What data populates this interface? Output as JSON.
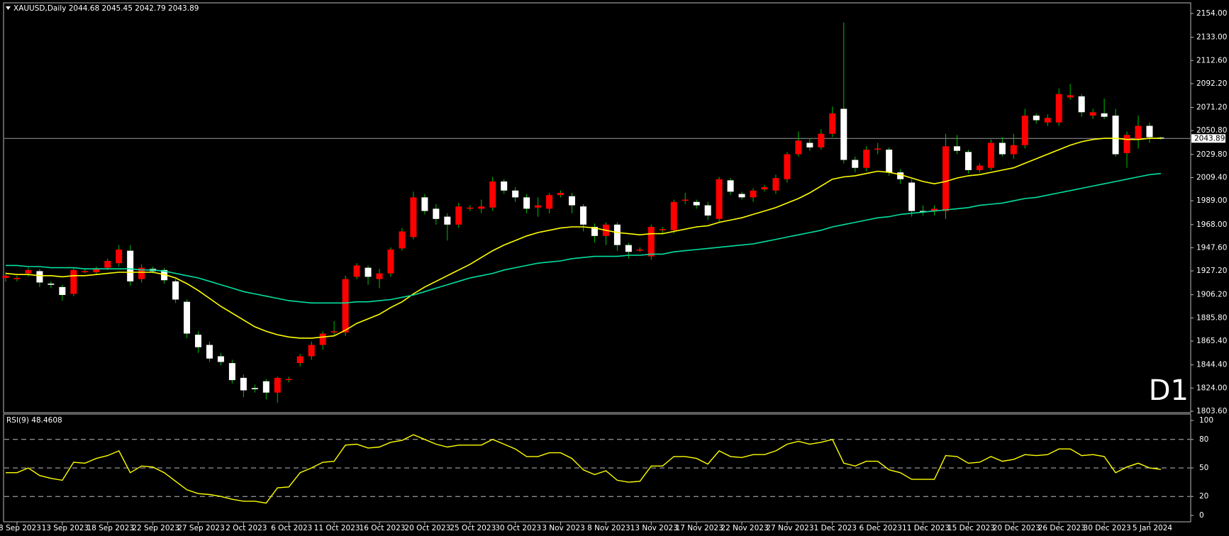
{
  "chart_data": [
    {
      "type": "candlestick",
      "title": "XAUUSD,Daily  2044.68 2045.45 2042.79 2043.89",
      "badge": "D1",
      "badge_color": "#e00000",
      "up_color": "#ff0000",
      "down_color": "#ffffff",
      "wick_color": "#00c000",
      "last_price": 2043.89,
      "categories": [
        null,
        "8 Sep 2023",
        null,
        null,
        null,
        "13 Sep 2023",
        null,
        null,
        null,
        "18 Sep 2023",
        null,
        null,
        null,
        "22 Sep 2023",
        null,
        null,
        null,
        "27 Sep 2023",
        null,
        null,
        null,
        "2 Oct 2023",
        null,
        null,
        null,
        "6 Oct 2023",
        null,
        null,
        null,
        "11 Oct 2023",
        null,
        null,
        null,
        "16 Oct 2023",
        null,
        null,
        null,
        "20 Oct 2023",
        null,
        null,
        null,
        "25 Oct 2023",
        null,
        null,
        null,
        "30 Oct 2023",
        null,
        null,
        null,
        "3 Nov 2023",
        null,
        null,
        null,
        "8 Nov 2023",
        null,
        null,
        null,
        "13 Nov 2023",
        null,
        null,
        null,
        "17 Nov 2023",
        null,
        null,
        null,
        "22 Nov 2023",
        null,
        null,
        null,
        "27 Nov 2023",
        null,
        null,
        null,
        "1 Dec 2023",
        null,
        null,
        null,
        "6 Dec 2023",
        null,
        null,
        null,
        "11 Dec 2023",
        null,
        null,
        null,
        "15 Dec 2023",
        null,
        null,
        null,
        "20 Dec 2023",
        null,
        null,
        null,
        "26 Dec 2023",
        null,
        null,
        null,
        "30 Dec 2023",
        null,
        null,
        null,
        "5 Jan 2024",
        null
      ],
      "open": [
        1921,
        1920,
        1925,
        1927,
        1916,
        1913,
        1907,
        1926,
        1926,
        1930,
        1934,
        1945,
        1920,
        1929,
        1928,
        1918,
        1900,
        1871,
        1862,
        1852,
        1846,
        1833,
        1824,
        1830,
        1820,
        1831,
        1846,
        1852,
        1862,
        1873,
        1873,
        1922,
        1930,
        1920,
        1925,
        1947,
        1957,
        1992,
        1982,
        1975,
        1968,
        1982,
        1982,
        1983,
        2006,
        1998,
        1992,
        1983,
        1982,
        1994,
        1993,
        1984,
        1966,
        1958,
        1968,
        1950,
        1945,
        1940,
        1963,
        1963,
        1989,
        1988,
        1985,
        1973,
        2007,
        1995,
        1992,
        1999,
        1998,
        2008,
        2030,
        2040,
        2036,
        2048,
        2070,
        2025,
        2018,
        2034,
        2034,
        2014,
        2005,
        1980,
        1980,
        1980,
        2037,
        2032,
        2016,
        2018,
        2040,
        2030,
        2038,
        2064,
        2058,
        2058,
        2080,
        2081,
        2064,
        2066,
        2064,
        2031,
        2043,
        2055,
        2044.68
      ],
      "high": [
        1926,
        1923,
        1930,
        1929,
        1918,
        1915,
        1930,
        1929,
        1931,
        1938,
        1950,
        1950,
        1933,
        1931,
        1930,
        1920,
        1902,
        1874,
        1865,
        1855,
        1849,
        1836,
        1827,
        1832,
        1834,
        1834,
        1854,
        1865,
        1874,
        1883,
        1923,
        1934,
        1932,
        1929,
        1948,
        1965,
        1997,
        1995,
        1986,
        1978,
        1987,
        1985,
        1990,
        2010,
        2008,
        2001,
        1995,
        1992,
        1996,
        1998,
        1996,
        1986,
        1969,
        1970,
        1970,
        1952,
        1948,
        1968,
        1966,
        1990,
        1996,
        1990,
        1988,
        2010,
        2009,
        1997,
        2000,
        2003,
        2012,
        2032,
        2050,
        2044,
        2052,
        2072,
        2146,
        2028,
        2037,
        2040,
        2036,
        2017,
        2008,
        1985,
        1985,
        2048,
        2047,
        2034,
        2022,
        2043,
        2045,
        2048,
        2070,
        2066,
        2065,
        2088,
        2092,
        2083,
        2070,
        2079,
        2070,
        2050,
        2064,
        2058,
        2045.45
      ],
      "low": [
        1918,
        1918,
        1922,
        1913,
        1912,
        1901,
        1905,
        1925,
        1924,
        1928,
        1931,
        1914,
        1917,
        1925,
        1916,
        1899,
        1868,
        1855,
        1847,
        1844,
        1828,
        1816,
        1820,
        1814,
        1811,
        1829,
        1843,
        1849,
        1858,
        1870,
        1870,
        1920,
        1915,
        1912,
        1922,
        1945,
        1955,
        1977,
        1968,
        1954,
        1965,
        1980,
        1978,
        1980,
        1995,
        1988,
        1978,
        1975,
        1978,
        1992,
        1978,
        1962,
        1952,
        1950,
        1945,
        1938,
        1944,
        1937,
        1960,
        1960,
        1986,
        1982,
        1972,
        1970,
        1994,
        1990,
        1988,
        1997,
        1995,
        2005,
        2028,
        2033,
        2034,
        2045,
        2022,
        2014,
        2015,
        2030,
        2011,
        2004,
        1975,
        1976,
        1976,
        1973,
        2030,
        2013,
        2014,
        2016,
        2028,
        2026,
        2035,
        2057,
        2055,
        2055,
        2078,
        2063,
        2061,
        2061,
        2028,
        2018,
        2035,
        2040,
        2042.79
      ],
      "close": [
        1923,
        1921,
        1928,
        1917,
        1915,
        1906,
        1928,
        1927,
        1929,
        1936,
        1946,
        1918,
        1930,
        1927,
        1919,
        1902,
        1872,
        1860,
        1850,
        1847,
        1831,
        1822,
        1823,
        1820,
        1833,
        1832,
        1852,
        1862,
        1872,
        1874,
        1920,
        1932,
        1922,
        1925,
        1946,
        1962,
        1992,
        1980,
        1973,
        1968,
        1984,
        1983,
        1984,
        2006,
        1998,
        1992,
        1982,
        1985,
        1994,
        1996,
        1985,
        1968,
        1958,
        1968,
        1950,
        1944,
        1946,
        1966,
        1964,
        1988,
        1990,
        1985,
        1976,
        2008,
        1997,
        1992,
        1998,
        2001,
        2009,
        2030,
        2042,
        2036,
        2048,
        2066,
        2025,
        2018,
        2034,
        2035,
        2014,
        2008,
        1980,
        1979,
        1982,
        2037,
        2033,
        2016,
        2020,
        2040,
        2030,
        2038,
        2064,
        2060,
        2062,
        2083,
        2082,
        2067,
        2067,
        2063,
        2030,
        2047,
        2055,
        2045,
        2043.89
      ],
      "overlays": [
        {
          "color": "#ffff00",
          "values": [
            1925,
            1924,
            1924,
            1923,
            1923,
            1922,
            1923,
            1923,
            1924,
            1925,
            1926,
            1926,
            1926,
            1926,
            1924,
            1921,
            1916,
            1910,
            1903,
            1896,
            1890,
            1884,
            1878,
            1874,
            1871,
            1869,
            1868,
            1868,
            1869,
            1870,
            1875,
            1881,
            1885,
            1889,
            1895,
            1900,
            1907,
            1913,
            1918,
            1923,
            1928,
            1933,
            1939,
            1945,
            1950,
            1954,
            1958,
            1961,
            1963,
            1965,
            1966,
            1966,
            1965,
            1963,
            1961,
            1960,
            1959,
            1960,
            1960,
            1962,
            1964,
            1966,
            1967,
            1970,
            1972,
            1974,
            1977,
            1980,
            1983,
            1987,
            1991,
            1996,
            2002,
            2008,
            2010,
            2011,
            2013,
            2015,
            2014,
            2012,
            2009,
            2006,
            2004,
            2006,
            2009,
            2011,
            2012,
            2014,
            2016,
            2018,
            2022,
            2026,
            2030,
            2034,
            2038,
            2041,
            2043,
            2044,
            2044,
            2043,
            2043,
            2044,
            2044
          ]
        },
        {
          "color": "#00e0a0",
          "values": [
            1932,
            1932,
            1931,
            1931,
            1930,
            1930,
            1930,
            1929,
            1929,
            1929,
            1929,
            1929,
            1928,
            1928,
            1927,
            1925,
            1923,
            1921,
            1918,
            1915,
            1912,
            1909,
            1907,
            1905,
            1903,
            1901,
            1900,
            1899,
            1899,
            1899,
            1899,
            1900,
            1900,
            1901,
            1902,
            1904,
            1906,
            1909,
            1912,
            1915,
            1918,
            1921,
            1923,
            1925,
            1928,
            1930,
            1932,
            1934,
            1935,
            1936,
            1938,
            1939,
            1940,
            1940,
            1940,
            1941,
            1941,
            1942,
            1942,
            1944,
            1945,
            1946,
            1947,
            1948,
            1949,
            1950,
            1951,
            1953,
            1955,
            1957,
            1959,
            1961,
            1963,
            1966,
            1968,
            1970,
            1972,
            1974,
            1975,
            1977,
            1978,
            1979,
            1980,
            1981,
            1982,
            1983,
            1985,
            1986,
            1987,
            1989,
            1991,
            1992,
            1994,
            1996,
            1998,
            2000,
            2002,
            2004,
            2006,
            2008,
            2010,
            2012,
            2013
          ]
        }
      ],
      "ylim": [
        1803.6,
        2154
      ],
      "yticks": [
        {
          "value": 1803.6,
          "label": "1803.60"
        },
        {
          "value": 1824,
          "label": "1824.00"
        },
        {
          "value": 1844.4,
          "label": "1844.40"
        },
        {
          "value": 1865.4,
          "label": "1865.40"
        },
        {
          "value": 1885.8,
          "label": "1885.80"
        },
        {
          "value": 1906.2,
          "label": "1906.20"
        },
        {
          "value": 1927.2,
          "label": "1927.20"
        },
        {
          "value": 1947.6,
          "label": "1947.60"
        },
        {
          "value": 1968,
          "label": "1968.00"
        },
        {
          "value": 1989,
          "label": "1989.00"
        },
        {
          "value": 2009.4,
          "label": "2009.40"
        },
        {
          "value": 2029.8,
          "label": "2029.80"
        },
        {
          "value": 2050.8,
          "label": "2050.80"
        },
        {
          "value": 2071.2,
          "label": "2071.20"
        },
        {
          "value": 2092.2,
          "label": "2092.20"
        },
        {
          "value": 2112.6,
          "label": "2112.60"
        },
        {
          "value": 2133,
          "label": "2133.00"
        },
        {
          "value": 2154,
          "label": "2154.00"
        }
      ]
    },
    {
      "type": "line",
      "title": "RSI(9) 48.4608",
      "color": "#ffff00",
      "values": [
        45,
        45,
        50,
        42,
        39,
        37,
        56,
        55,
        60,
        63,
        68,
        45,
        52,
        51,
        45,
        36,
        27,
        23,
        22,
        20,
        17,
        15,
        15,
        13,
        29,
        30,
        45,
        50,
        56,
        57,
        74,
        75,
        71,
        72,
        77,
        79,
        85,
        80,
        75,
        72,
        74,
        74,
        74,
        80,
        75,
        70,
        62,
        62,
        66,
        66,
        60,
        48,
        43,
        47,
        37,
        35,
        36,
        52,
        52,
        62,
        62,
        60,
        54,
        68,
        62,
        61,
        64,
        64,
        68,
        75,
        78,
        75,
        77,
        80,
        55,
        52,
        57,
        57,
        48,
        45,
        38,
        38,
        38,
        63,
        62,
        55,
        56,
        62,
        57,
        59,
        64,
        63,
        64,
        70,
        70,
        63,
        64,
        62,
        45,
        51,
        55,
        50,
        48.46
      ],
      "ylim": [
        0,
        100
      ],
      "yticks": [
        0,
        20,
        50,
        80,
        100
      ]
    }
  ]
}
